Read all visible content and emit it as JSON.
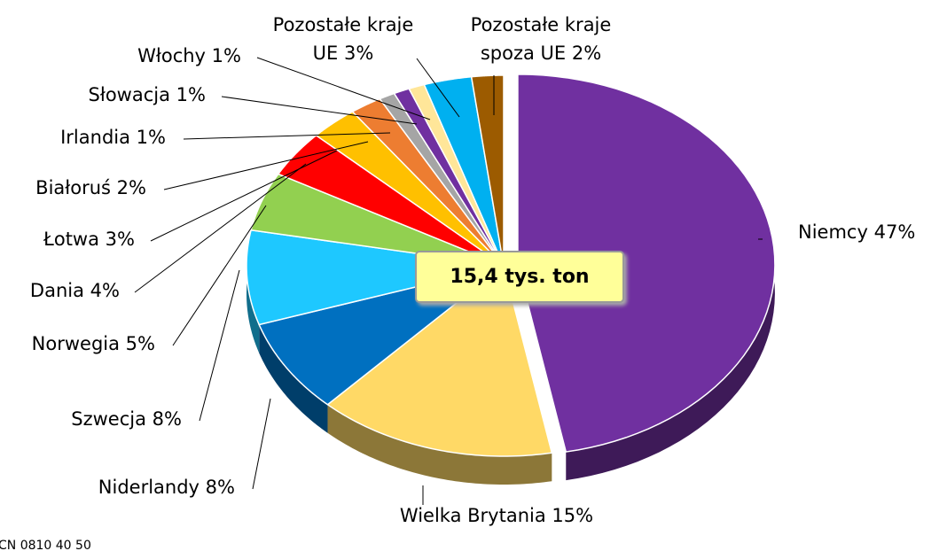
{
  "chart_data": {
    "type": "pie",
    "annotation": "15,4 tys. ton",
    "note": "CN 0810 40 50",
    "categories": [
      "Niemcy",
      "Wielka Brytania",
      "Niderlandy",
      "Szwecja",
      "Norwegia",
      "Dania",
      "Łotwa",
      "Białoruś",
      "Irlandia",
      "Słowacja",
      "Włochy",
      "Pozostałe kraje UE",
      "Pozostałe kraje spoza UE"
    ],
    "values": [
      47,
      15,
      8,
      8,
      5,
      4,
      3,
      2,
      1,
      1,
      1,
      3,
      2
    ],
    "value_labels": [
      "47%",
      "15%",
      "8%",
      "8%",
      "5%",
      "4%",
      "3%",
      "2%",
      "1%",
      "1%",
      "1%",
      "3%",
      "2%"
    ],
    "colors": [
      "#7030a0",
      "#ffd966",
      "#0070c0",
      "#1ec8ff",
      "#92d050",
      "#ff0000",
      "#ffc000",
      "#ed7d31",
      "#a5a5a5",
      "#7030a0",
      "#ffe699",
      "#00b0f0",
      "#9c5b00"
    ]
  }
}
